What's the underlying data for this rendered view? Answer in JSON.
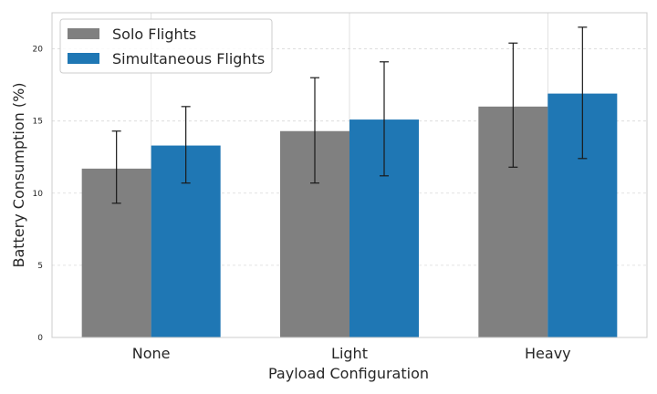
{
  "chart_data": {
    "type": "bar",
    "title": "",
    "xlabel": "Payload Configuration",
    "ylabel": "Battery Consumption (%)",
    "categories": [
      "None",
      "Light",
      "Heavy"
    ],
    "ylim": [
      0,
      22.5
    ],
    "yticks": [
      0,
      5,
      10,
      15,
      20
    ],
    "grid": true,
    "legend_position": "top-left",
    "series": [
      {
        "name": "Solo Flights",
        "color": "#808080",
        "values": [
          11.7,
          14.3,
          16.0
        ],
        "error_low": [
          9.3,
          10.7,
          11.8
        ],
        "error_high": [
          14.3,
          18.0,
          20.4
        ]
      },
      {
        "name": "Simultaneous Flights",
        "color": "#1f77b4",
        "values": [
          13.3,
          15.1,
          16.9
        ],
        "error_low": [
          10.7,
          11.2,
          12.4
        ],
        "error_high": [
          16.0,
          19.1,
          21.5
        ]
      }
    ]
  }
}
